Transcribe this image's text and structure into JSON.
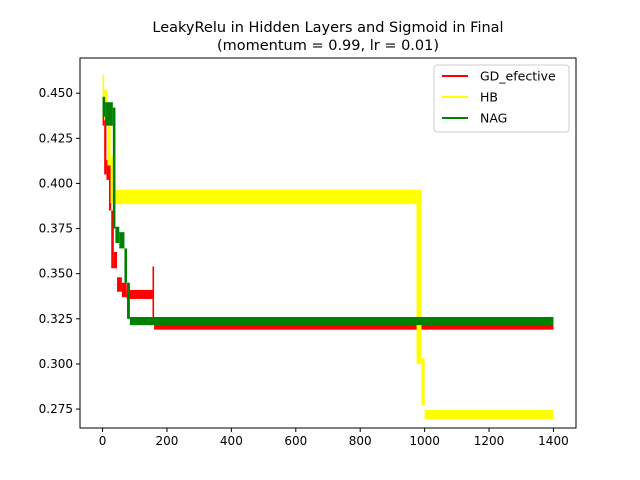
{
  "chart_data": {
    "type": "line",
    "title_line1": "LeakyRelu in Hidden Layers and Sigmoid in Final",
    "title_line2": "(momentum = 0.99, lr = 0.01)",
    "xlabel": "",
    "ylabel": "",
    "xlim": [
      -70,
      1470
    ],
    "ylim": [
      0.2645,
      0.4695
    ],
    "x_ticks": [
      0,
      200,
      400,
      600,
      800,
      1000,
      1200,
      1400
    ],
    "x_tick_labels": [
      "0",
      "200",
      "400",
      "600",
      "800",
      "1000",
      "1200",
      "1400"
    ],
    "y_ticks": [
      0.275,
      0.3,
      0.325,
      0.35,
      0.375,
      0.4,
      0.425,
      0.45
    ],
    "y_tick_labels": [
      "0.275",
      "0.300",
      "0.325",
      "0.350",
      "0.375",
      "0.400",
      "0.425",
      "0.450"
    ],
    "grid": false,
    "legend_position": "top-right",
    "series": [
      {
        "name": "GD_efective",
        "color": "#ff0000",
        "bands": [
          {
            "x": [
              0,
              5
            ],
            "low": 0.432,
            "high": 0.448
          },
          {
            "x": [
              5,
              12
            ],
            "low": 0.405,
            "high": 0.44
          },
          {
            "x": [
              12,
              20
            ],
            "low": 0.402,
            "high": 0.413
          },
          {
            "x": [
              20,
              27
            ],
            "low": 0.385,
            "high": 0.41
          },
          {
            "x": [
              27,
              35
            ],
            "low": 0.353,
            "high": 0.385
          },
          {
            "x": [
              35,
              45
            ],
            "low": 0.353,
            "high": 0.362
          },
          {
            "x": [
              45,
              60
            ],
            "low": 0.34,
            "high": 0.348
          },
          {
            "x": [
              60,
              75
            ],
            "low": 0.337,
            "high": 0.345
          },
          {
            "x": [
              75,
              155
            ],
            "low": 0.336,
            "high": 0.341
          },
          {
            "x": [
              155,
              160
            ],
            "low": 0.326,
            "high": 0.354
          },
          {
            "x": [
              160,
              1400
            ],
            "low": 0.319,
            "high": 0.3225
          }
        ]
      },
      {
        "name": "HB",
        "color": "#ffff00",
        "bands": [
          {
            "x": [
              0,
              5
            ],
            "low": 0.445,
            "high": 0.46
          },
          {
            "x": [
              5,
              15
            ],
            "low": 0.435,
            "high": 0.452
          },
          {
            "x": [
              15,
              25
            ],
            "low": 0.41,
            "high": 0.44
          },
          {
            "x": [
              25,
              35
            ],
            "low": 0.389,
            "high": 0.415
          },
          {
            "x": [
              35,
              975
            ],
            "low": 0.3885,
            "high": 0.3965
          },
          {
            "x": [
              975,
              990
            ],
            "low": 0.3,
            "high": 0.3965
          },
          {
            "x": [
              990,
              1000
            ],
            "low": 0.277,
            "high": 0.303
          },
          {
            "x": [
              1000,
              1400
            ],
            "low": 0.2695,
            "high": 0.2745
          }
        ]
      },
      {
        "name": "NAG",
        "color": "#008000",
        "bands": [
          {
            "x": [
              0,
              8
            ],
            "low": 0.437,
            "high": 0.448
          },
          {
            "x": [
              8,
              32
            ],
            "low": 0.432,
            "high": 0.445
          },
          {
            "x": [
              32,
              40
            ],
            "low": 0.375,
            "high": 0.442
          },
          {
            "x": [
              40,
              52
            ],
            "low": 0.367,
            "high": 0.376
          },
          {
            "x": [
              52,
              68
            ],
            "low": 0.364,
            "high": 0.373
          },
          {
            "x": [
              68,
              76
            ],
            "low": 0.345,
            "high": 0.364
          },
          {
            "x": [
              76,
              85
            ],
            "low": 0.325,
            "high": 0.345
          },
          {
            "x": [
              85,
              1400
            ],
            "low": 0.3215,
            "high": 0.326
          }
        ]
      }
    ]
  }
}
